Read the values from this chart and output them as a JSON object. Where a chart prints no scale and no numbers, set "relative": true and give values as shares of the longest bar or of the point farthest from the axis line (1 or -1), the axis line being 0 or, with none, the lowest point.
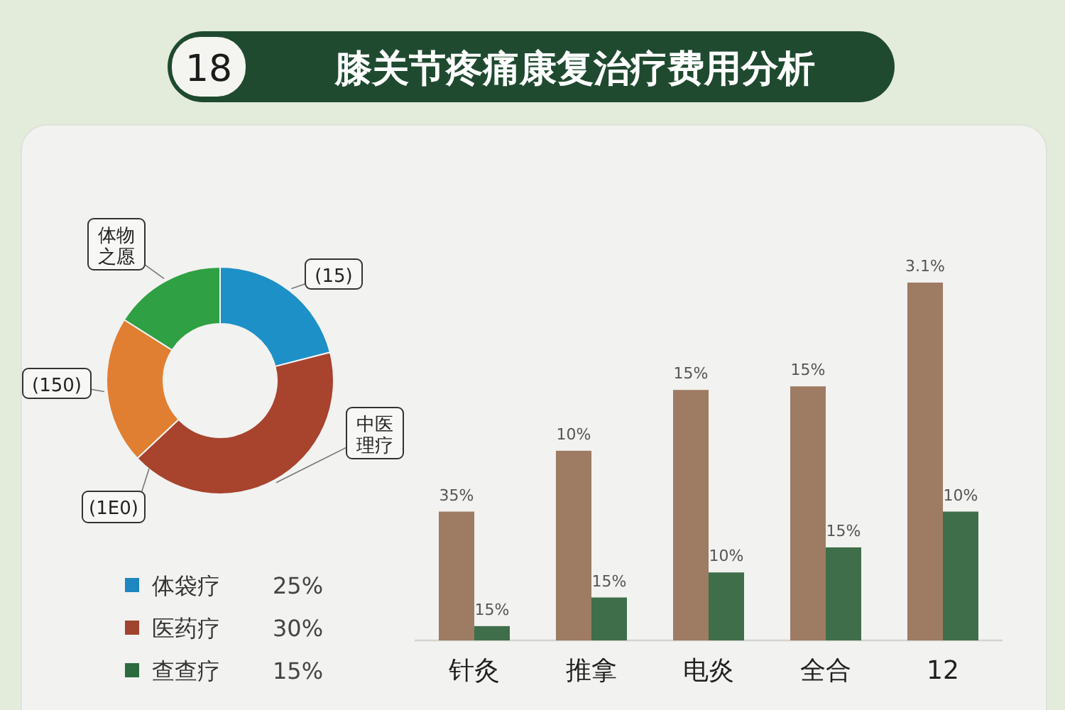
{
  "chart_data": [
    {
      "type": "donut",
      "annotations": [
        "18",
        "(1E0)"
      ],
      "categories": [
        "(15)",
        "中医理疗",
        "(150)",
        "体物之愿"
      ],
      "values": [
        21,
        42,
        21,
        16
      ],
      "colors": [
        "#1e90c8",
        "#a8432e",
        "#e07f32",
        "#2fa043"
      ]
    },
    {
      "type": "other",
      "categories": [
        "体袋疗",
        "医药疗",
        "查查疗"
      ],
      "value_labels": [
        "25%",
        "30%",
        "15%"
      ],
      "colors": [
        "#1e86c0",
        "#a0442f",
        "#2d6b3e"
      ]
    },
    {
      "type": "bar",
      "relative": true,
      "title": "膝关节疼痛康复治疗费用分析",
      "categories": [
        "针灸",
        "推拿",
        "电炎",
        "全合",
        "12"
      ],
      "annotations": [
        "35%",
        "10%",
        "15%",
        "15%",
        "3.1%",
        "15%",
        "15%",
        "10%",
        "15%",
        "10%"
      ],
      "series": [
        {
          "color": "#9e7b63",
          "values": [
            0.36,
            0.53,
            0.7,
            0.71,
            1
          ]
        },
        {
          "color": "#3f6e4a",
          "values": [
            0.04,
            0.12,
            0.19,
            0.26,
            0.36
          ]
        }
      ]
    }
  ]
}
